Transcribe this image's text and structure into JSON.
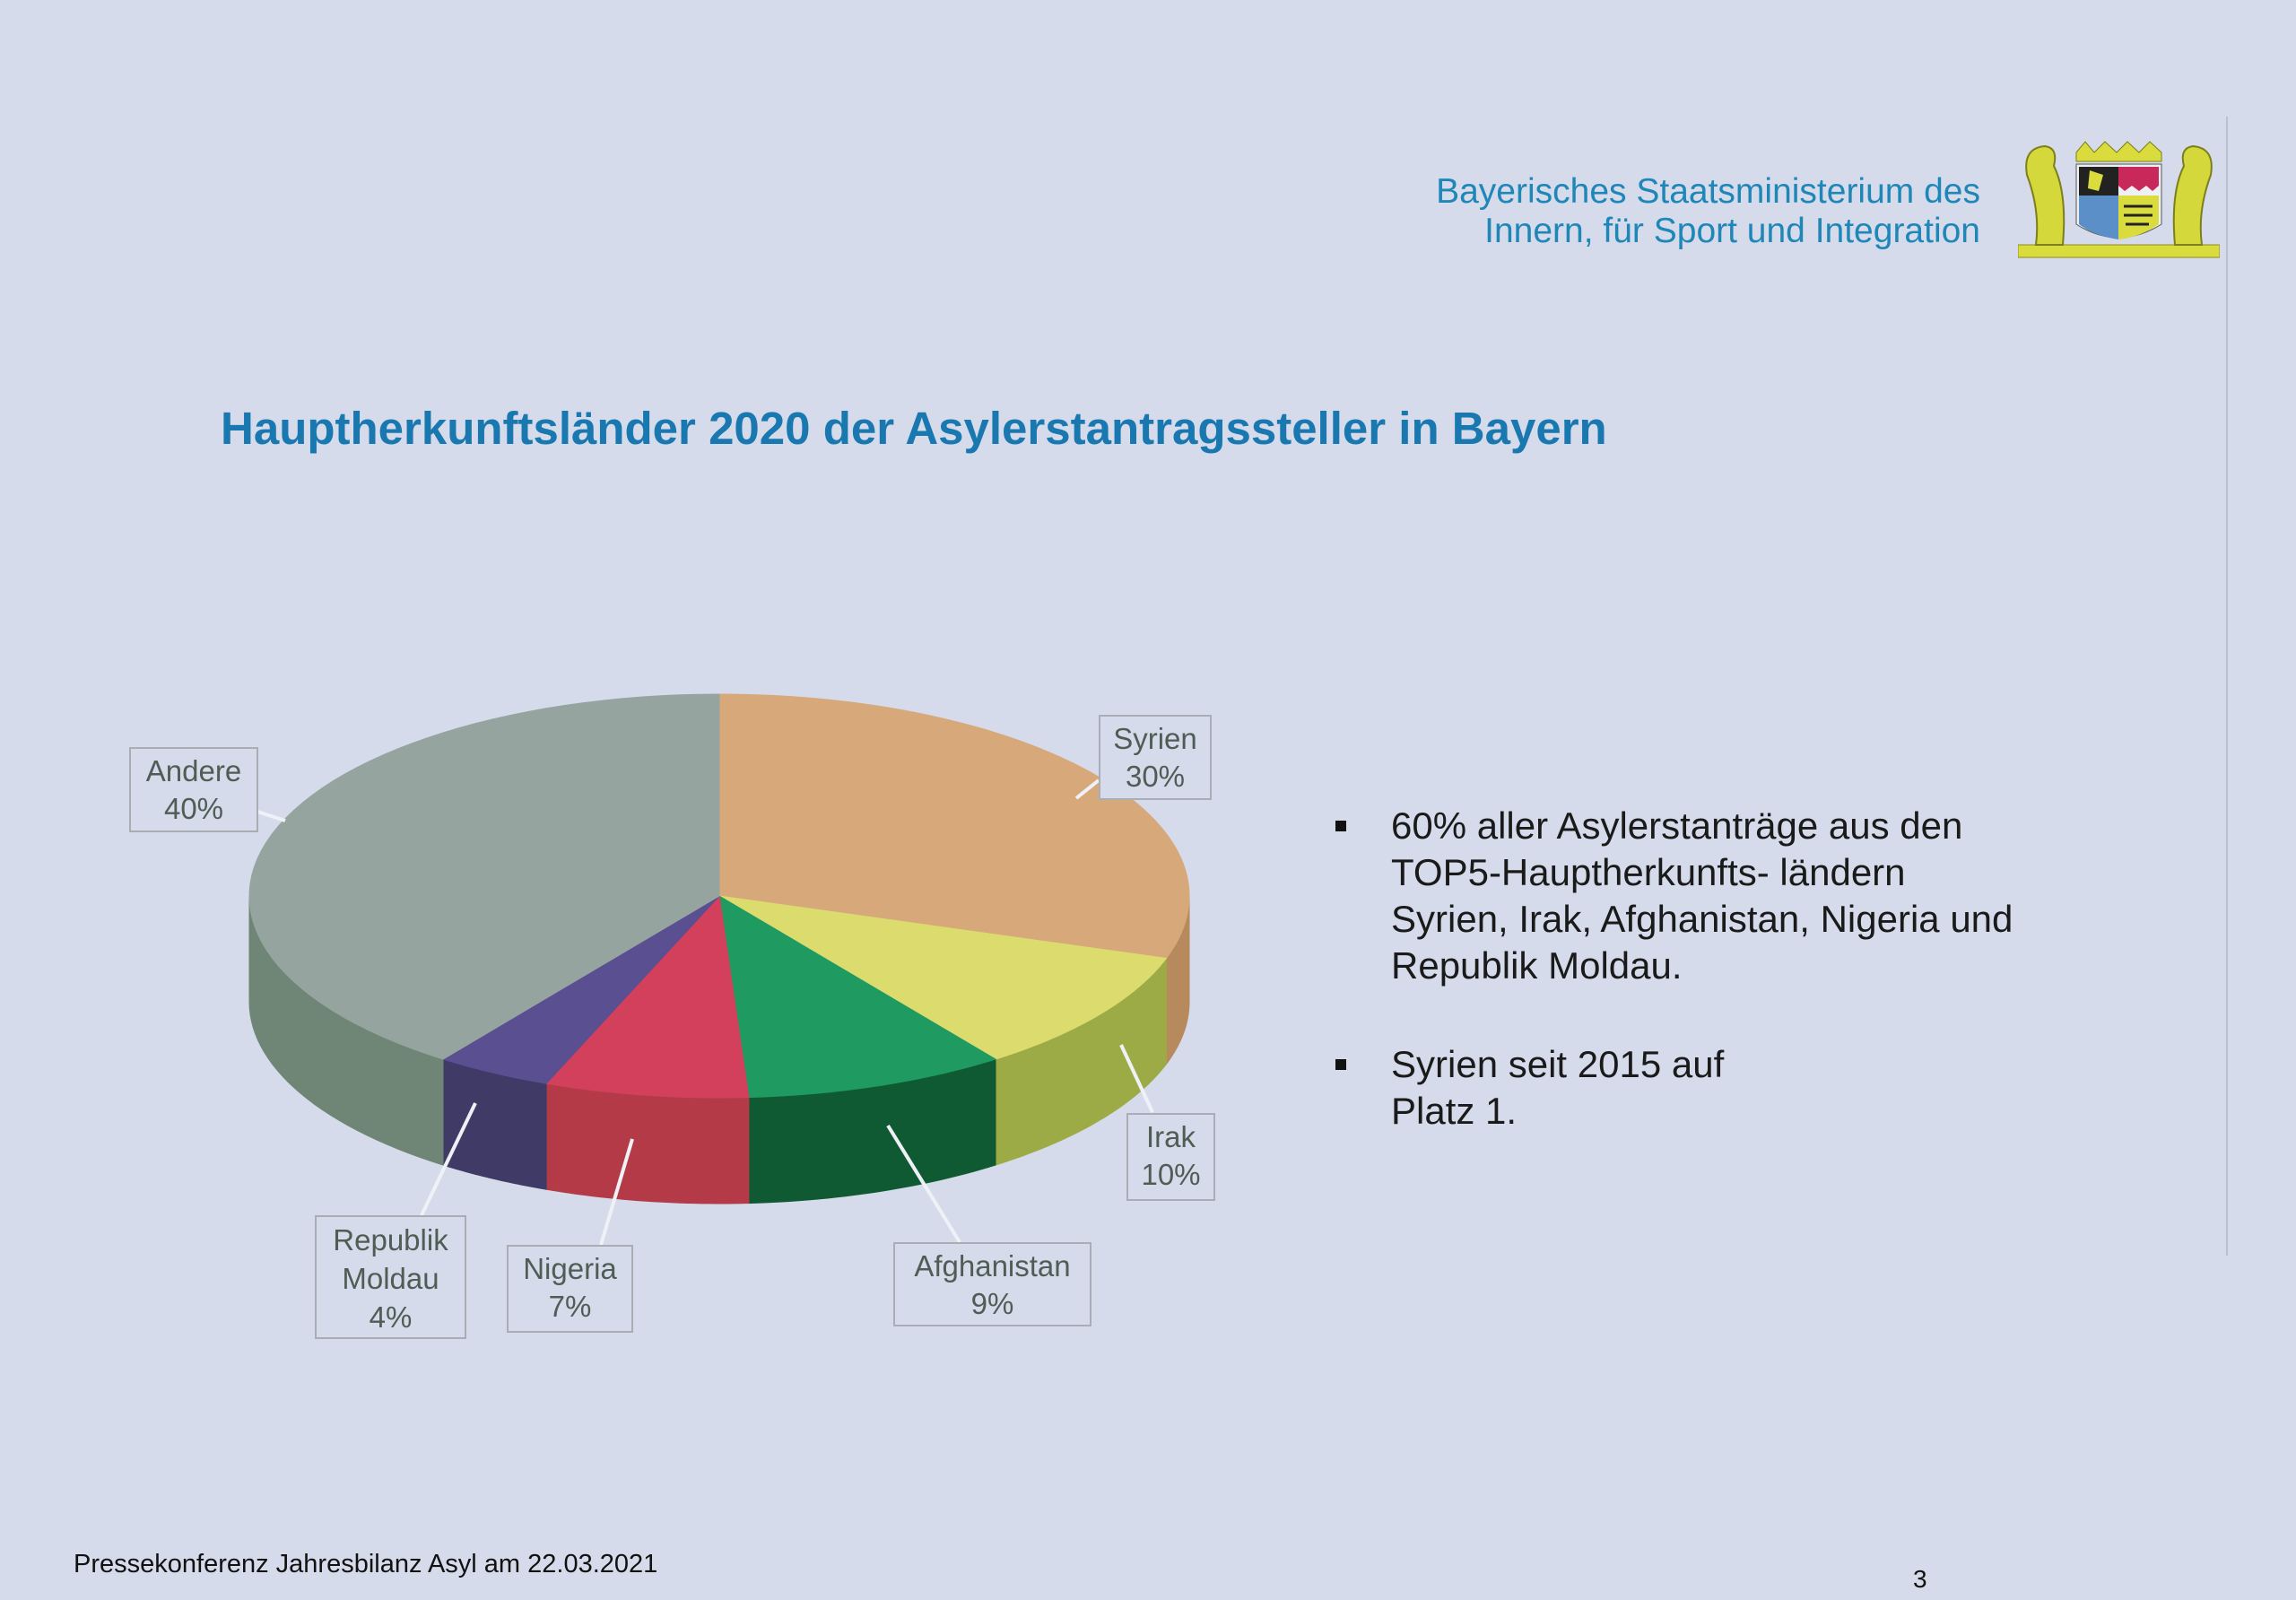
{
  "header": {
    "ministry_line1": "Bayerisches Staatsministerium des",
    "ministry_line2": "Innern, für Sport und Integration",
    "logo_icon": "bavarian-coat-of-arms"
  },
  "chart_data": {
    "type": "pie",
    "style": "3d",
    "title": "Hauptherkunftsländer 2020 der Asylerstantragssteller in Bayern",
    "slices": [
      {
        "label": "Syrien",
        "value": 30,
        "value_label": "30%",
        "color": "#d7a87a",
        "side": "#b78a5e"
      },
      {
        "label": "Irak",
        "value": 10,
        "value_label": "10%",
        "color": "#dcdc6e",
        "side": "#9cab46"
      },
      {
        "label": "Afghanistan",
        "value": 9,
        "value_label": "9%",
        "color": "#1f9a60",
        "side": "#0f5a32"
      },
      {
        "label": "Nigeria",
        "value": 7,
        "value_label": "7%",
        "color": "#d2405c",
        "side": "#b43a48"
      },
      {
        "label": "Republik Moldau",
        "value": 4,
        "value_label": "4%",
        "color": "#5a4f90",
        "side": "#3f3a66"
      },
      {
        "label": "Andere",
        "value": 40,
        "value_label": "40%",
        "color": "#96a4a0",
        "side": "#6f8676"
      }
    ]
  },
  "bullets": [
    "60% aller Asylerstanträge aus den TOP5-Hauptherkunfts- ländern Syrien, Irak, Afghanistan, Nigeria und Republik Moldau.",
    "Syrien seit 2015 auf Platz 1."
  ],
  "footer": {
    "text": "Pressekonferenz Jahresbilanz Asyl am 22.03.2021",
    "page": "3"
  }
}
